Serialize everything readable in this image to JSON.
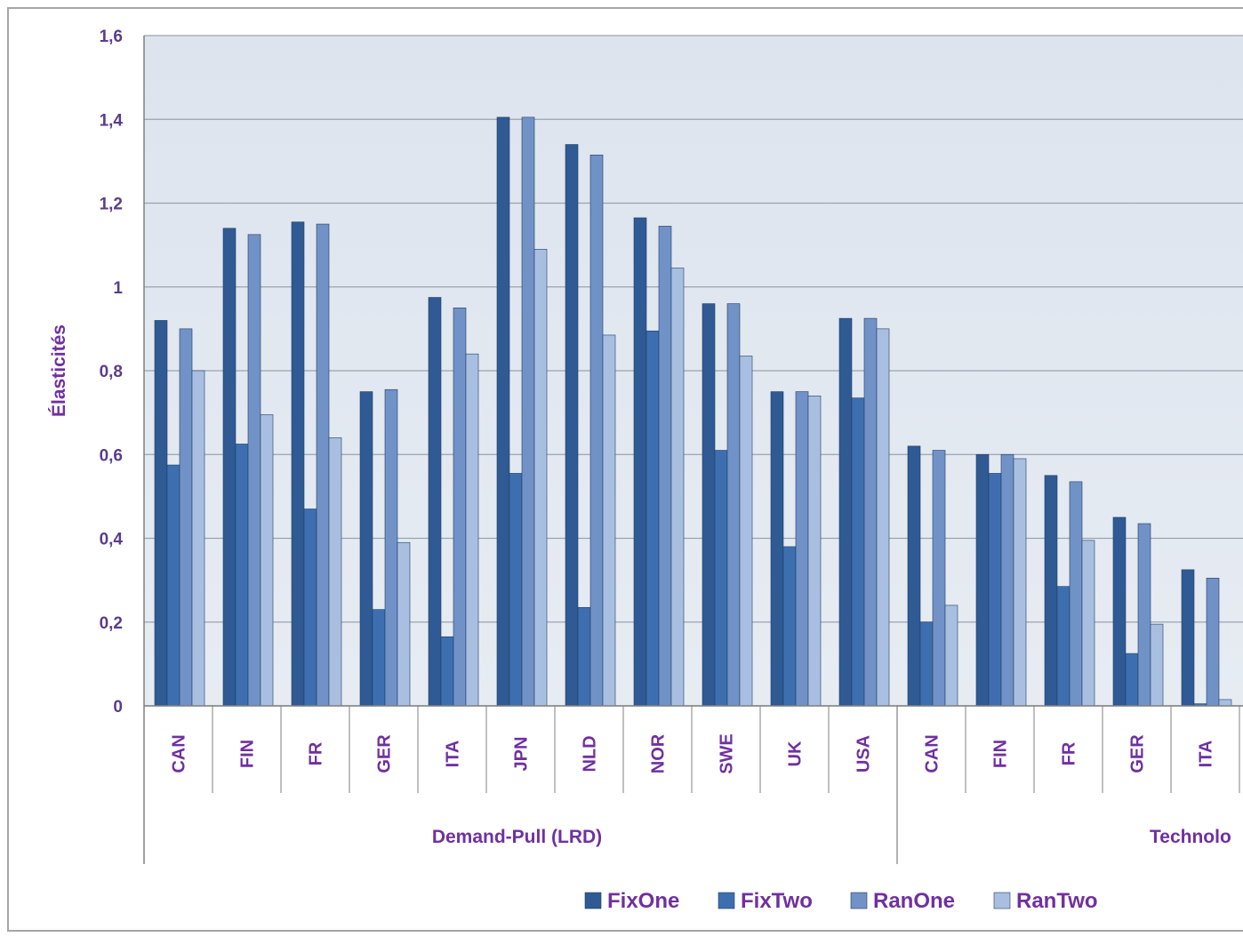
{
  "chart_data": {
    "type": "bar",
    "ylabel": "Élasticités",
    "ylim": [
      0,
      1.6
    ],
    "yticks": [
      "0",
      "0,2",
      "0,4",
      "0,6",
      "0,8",
      "1",
      "1,2",
      "1,4",
      "1,6"
    ],
    "grid": true,
    "legend_position": "bottom",
    "groups": [
      {
        "label": "Demand-Pull (LRD)",
        "categories": [
          "CAN",
          "FIN",
          "FR",
          "GER",
          "ITA",
          "JPN",
          "NLD",
          "NOR",
          "SWE",
          "UK",
          "USA"
        ]
      },
      {
        "label": "Technolo",
        "categories": [
          "CAN",
          "FIN",
          "FR",
          "GER",
          "ITA"
        ]
      }
    ],
    "categories": [
      "CAN",
      "FIN",
      "FR",
      "GER",
      "ITA",
      "JPN",
      "NLD",
      "NOR",
      "SWE",
      "UK",
      "USA",
      "CAN",
      "FIN",
      "FR",
      "GER",
      "ITA"
    ],
    "series": [
      {
        "name": "FixOne",
        "color": "#2f5a93",
        "values": [
          0.92,
          1.14,
          1.155,
          0.75,
          0.975,
          1.405,
          1.34,
          1.165,
          0.96,
          0.75,
          0.925,
          0.62,
          0.6,
          0.55,
          0.45,
          0.325
        ]
      },
      {
        "name": "FixTwo",
        "color": "#3d6fb0",
        "values": [
          0.575,
          0.625,
          0.47,
          0.23,
          0.165,
          0.555,
          0.235,
          0.895,
          0.61,
          0.38,
          0.735,
          0.2,
          0.555,
          0.285,
          0.125,
          0.005
        ]
      },
      {
        "name": "RanOne",
        "color": "#7192c6",
        "values": [
          0.9,
          1.125,
          1.15,
          0.755,
          0.95,
          1.405,
          1.315,
          1.145,
          0.96,
          0.75,
          0.925,
          0.61,
          0.6,
          0.535,
          0.435,
          0.305
        ]
      },
      {
        "name": "RanTwo",
        "color": "#a9bfe1",
        "values": [
          0.8,
          0.695,
          0.64,
          0.39,
          0.84,
          1.09,
          0.885,
          1.045,
          0.835,
          0.74,
          0.9,
          0.24,
          0.59,
          0.395,
          0.195,
          0.015
        ]
      }
    ]
  }
}
